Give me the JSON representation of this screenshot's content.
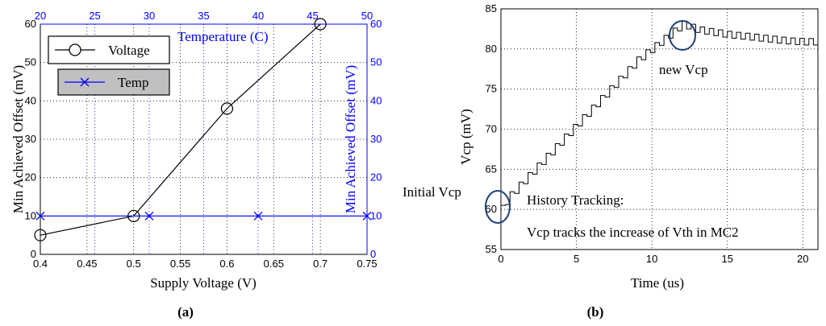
{
  "chart_data": [
    {
      "type": "line",
      "panel_label": "(a)",
      "xlabel": "Supply Voltage (V)",
      "ylabel": "Min Achieved Offset (mV)",
      "x2label": "Temperature (C)",
      "y2label": "Min Achieved Offset (mV)",
      "xlim": [
        0.4,
        0.75
      ],
      "ylim": [
        0,
        60
      ],
      "x2lim": [
        20,
        50
      ],
      "y2lim": [
        0,
        60
      ],
      "xticks": [
        "0.4",
        "0.45",
        "0.5",
        "0.55",
        "0.6",
        "0.65",
        "0.7",
        "0.75"
      ],
      "yticks": [
        "0",
        "10",
        "20",
        "30",
        "40",
        "50",
        "60"
      ],
      "x2ticks": [
        "20",
        "25",
        "30",
        "35",
        "40",
        "45",
        "50"
      ],
      "y2ticks": [
        "0",
        "10",
        "20",
        "30",
        "40",
        "50",
        "60"
      ],
      "grid": true,
      "series": [
        {
          "name": "Voltage",
          "axis": "bottom-left",
          "marker": "circle",
          "color": "#000000",
          "x": [
            0.4,
            0.5,
            0.6,
            0.7
          ],
          "y": [
            5,
            10,
            38,
            60
          ]
        },
        {
          "name": "Temp",
          "axis": "top-right",
          "marker": "x",
          "color": "#0000ff",
          "x": [
            20,
            30,
            40,
            50
          ],
          "y": [
            10,
            10,
            10,
            10
          ]
        }
      ],
      "legend": "top-left"
    },
    {
      "type": "line",
      "panel_label": "(b)",
      "xlabel": "Time (us)",
      "ylabel": "Vcp (mV)",
      "xlim": [
        0,
        21
      ],
      "ylim": [
        55,
        85
      ],
      "xticks": [
        "0",
        "5",
        "10",
        "15",
        "20"
      ],
      "yticks": [
        "55",
        "60",
        "65",
        "70",
        "75",
        "80",
        "85"
      ],
      "grid": true,
      "color": "#000000",
      "series_points": [
        [
          0,
          60
        ],
        [
          0.5,
          61.5
        ],
        [
          1.0,
          62.5
        ],
        [
          2.0,
          64.5
        ],
        [
          3.0,
          66.5
        ],
        [
          4.0,
          68.5
        ],
        [
          5.0,
          70.5
        ],
        [
          6.0,
          72.5
        ],
        [
          7.0,
          74.5
        ],
        [
          8.0,
          76.5
        ],
        [
          9.0,
          78.5
        ],
        [
          10.0,
          80
        ],
        [
          11.0,
          81.5
        ],
        [
          12.0,
          83
        ],
        [
          13.0,
          82.3
        ],
        [
          14.0,
          82
        ],
        [
          15.0,
          81.7
        ],
        [
          16.0,
          81.5
        ],
        [
          17.0,
          81.3
        ],
        [
          18.0,
          81.1
        ],
        [
          19.0,
          80.9
        ],
        [
          20.0,
          80.8
        ],
        [
          21.0,
          80.8
        ]
      ],
      "annotations": [
        "Initial Vcp",
        "new Vcp",
        "History Tracking:",
        "Vcp tracks the increase of Vth in MC2"
      ]
    }
  ]
}
